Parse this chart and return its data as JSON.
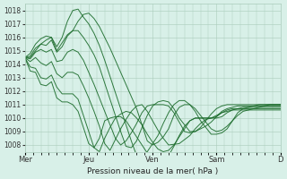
{
  "background_color": "#d8f0e8",
  "grid_color": "#aaccbb",
  "line_color": "#1a6b2a",
  "xlabel": "Pression niveau de la mer( hPa )",
  "ylim": [
    1007.5,
    1018.5
  ],
  "yticks": [
    1008,
    1009,
    1010,
    1011,
    1012,
    1013,
    1014,
    1015,
    1016,
    1017,
    1018
  ],
  "xtick_labels": [
    "Mer",
    "Jeu",
    "Ven",
    "Sam",
    "D"
  ],
  "xtick_positions": [
    0,
    48,
    96,
    144,
    192
  ],
  "xlim": [
    0,
    192
  ],
  "series": [
    {
      "x": [
        0,
        4,
        8,
        12,
        16,
        20,
        24,
        28,
        32,
        36,
        40,
        44,
        48,
        52,
        56,
        60,
        64,
        68,
        72,
        76,
        80,
        84,
        88,
        92,
        96,
        100,
        104,
        108,
        112,
        116,
        120,
        124,
        128,
        132,
        136,
        140,
        144,
        148,
        152,
        156,
        160,
        164,
        168,
        172,
        176,
        180,
        184,
        188,
        192
      ],
      "y": [
        1014.5,
        1014.8,
        1015.5,
        1015.9,
        1016.1,
        1016.0,
        1015.0,
        1015.6,
        1016.2,
        1016.5,
        1017.2,
        1017.7,
        1017.8,
        1017.4,
        1016.8,
        1016.0,
        1015.2,
        1014.3,
        1013.4,
        1012.5,
        1011.6,
        1010.7,
        1009.5,
        1008.3,
        1008.0,
        1008.2,
        1008.6,
        1009.2,
        1010.2,
        1010.8,
        1011.0,
        1011.0,
        1010.7,
        1010.2,
        1009.7,
        1009.2,
        1009.0,
        1009.1,
        1009.4,
        1009.8,
        1010.2,
        1010.5,
        1010.6,
        1010.7,
        1010.8,
        1010.9,
        1011.0,
        1011.0,
        1011.0
      ]
    },
    {
      "x": [
        0,
        4,
        8,
        12,
        16,
        20,
        24,
        28,
        32,
        36,
        40,
        44,
        48,
        52,
        56,
        60,
        64,
        68,
        72,
        76,
        80,
        84,
        88,
        92,
        96,
        100,
        104,
        108,
        112,
        116,
        120,
        124,
        128,
        132,
        136,
        140,
        144,
        148,
        152,
        156,
        160,
        164,
        168,
        172,
        176,
        180,
        184,
        188,
        192
      ],
      "y": [
        1014.5,
        1014.5,
        1015.0,
        1015.5,
        1015.8,
        1016.0,
        1015.3,
        1016.0,
        1017.2,
        1018.0,
        1018.1,
        1017.5,
        1017.0,
        1016.3,
        1015.4,
        1014.3,
        1013.1,
        1011.9,
        1010.7,
        1009.5,
        1008.3,
        1007.2,
        1007.0,
        1007.5,
        1008.1,
        1008.7,
        1009.6,
        1010.4,
        1011.0,
        1011.3,
        1011.3,
        1011.0,
        1010.5,
        1009.8,
        1009.3,
        1008.8,
        1008.8,
        1008.9,
        1009.2,
        1009.8,
        1010.4,
        1010.7,
        1010.8,
        1010.9,
        1011.0,
        1011.0,
        1011.0,
        1011.0,
        1011.0
      ]
    },
    {
      "x": [
        0,
        4,
        8,
        12,
        16,
        20,
        24,
        28,
        32,
        36,
        40,
        44,
        48,
        52,
        56,
        60,
        64,
        68,
        72,
        76,
        80,
        84,
        88,
        92,
        96,
        100,
        104,
        108,
        112,
        116,
        120,
        124,
        128,
        132,
        136,
        140,
        144,
        148,
        152,
        156,
        160,
        164,
        168,
        172,
        176,
        180,
        184,
        188,
        192
      ],
      "y": [
        1014.5,
        1014.6,
        1015.2,
        1015.5,
        1015.4,
        1015.8,
        1014.9,
        1015.3,
        1016.1,
        1016.5,
        1016.5,
        1016.0,
        1015.4,
        1014.7,
        1013.8,
        1012.6,
        1011.4,
        1010.2,
        1009.0,
        1007.9,
        1007.8,
        1008.3,
        1009.3,
        1010.2,
        1010.9,
        1011.2,
        1011.3,
        1011.2,
        1010.7,
        1010.0,
        1009.5,
        1009.0,
        1009.0,
        1009.3,
        1009.8,
        1010.3,
        1010.7,
        1010.9,
        1011.0,
        1011.0,
        1011.0,
        1011.0,
        1011.0,
        1011.0,
        1011.0,
        1011.0,
        1011.0,
        1011.0,
        1011.0
      ]
    },
    {
      "x": [
        0,
        4,
        8,
        12,
        16,
        20,
        24,
        28,
        32,
        36,
        40,
        44,
        48,
        52,
        56,
        60,
        64,
        68,
        72,
        76,
        80,
        84,
        88,
        92,
        96,
        100,
        104,
        108,
        112,
        116,
        120,
        124,
        128,
        132,
        136,
        140,
        144,
        148,
        152,
        156,
        160,
        164,
        168,
        172,
        176,
        180,
        184,
        188,
        192
      ],
      "y": [
        1014.5,
        1014.4,
        1014.9,
        1015.1,
        1014.9,
        1015.1,
        1014.2,
        1014.3,
        1014.9,
        1015.1,
        1014.9,
        1014.3,
        1013.4,
        1012.5,
        1011.5,
        1010.5,
        1009.5,
        1008.5,
        1008.0,
        1008.3,
        1008.9,
        1009.6,
        1010.4,
        1010.9,
        1011.0,
        1011.0,
        1011.0,
        1010.9,
        1010.4,
        1009.7,
        1009.0,
        1008.9,
        1009.0,
        1009.2,
        1009.4,
        1009.7,
        1010.1,
        1010.5,
        1010.7,
        1010.8,
        1010.9,
        1010.9,
        1010.9,
        1010.9,
        1010.9,
        1010.9,
        1010.9,
        1010.9,
        1010.9
      ]
    },
    {
      "x": [
        0,
        4,
        8,
        12,
        16,
        20,
        24,
        28,
        32,
        36,
        40,
        44,
        48,
        52,
        56,
        60,
        64,
        68,
        72,
        76,
        80,
        84,
        88,
        92,
        96,
        100,
        104,
        108,
        116,
        120,
        124,
        128,
        132,
        136,
        140,
        144,
        148,
        152,
        156,
        160,
        164,
        168,
        172,
        176,
        180,
        184,
        188,
        192
      ],
      "y": [
        1014.5,
        1014.2,
        1014.5,
        1014.1,
        1013.9,
        1014.2,
        1013.3,
        1013.0,
        1013.4,
        1013.4,
        1013.2,
        1012.4,
        1011.5,
        1010.5,
        1009.4,
        1008.1,
        1007.6,
        1008.4,
        1009.2,
        1009.9,
        1010.5,
        1010.9,
        1011.0,
        1010.5,
        1009.8,
        1009.1,
        1008.5,
        1008.0,
        1008.1,
        1008.4,
        1008.7,
        1009.2,
        1009.6,
        1009.9,
        1010.0,
        1010.0,
        1010.1,
        1010.4,
        1010.6,
        1010.7,
        1010.8,
        1010.8,
        1010.8,
        1010.8,
        1010.8,
        1010.8,
        1010.8,
        1010.8
      ]
    },
    {
      "x": [
        0,
        4,
        8,
        12,
        16,
        20,
        24,
        28,
        32,
        36,
        40,
        44,
        48,
        52,
        56,
        60,
        64,
        68,
        72,
        76,
        80,
        84,
        88,
        92,
        96,
        100,
        104,
        108,
        112,
        116,
        120,
        124,
        128,
        132,
        136,
        140,
        144,
        148,
        152,
        156,
        160,
        164,
        168,
        172,
        176,
        180,
        184,
        188,
        192
      ],
      "y": [
        1014.5,
        1013.8,
        1013.7,
        1013.0,
        1012.9,
        1013.2,
        1012.3,
        1011.8,
        1011.8,
        1011.8,
        1011.4,
        1010.2,
        1009.0,
        1007.8,
        1007.5,
        1008.5,
        1009.3,
        1010.0,
        1010.3,
        1010.5,
        1010.4,
        1010.0,
        1009.5,
        1008.8,
        1008.2,
        1007.7,
        1007.5,
        1007.6,
        1008.0,
        1008.6,
        1009.2,
        1009.8,
        1010.0,
        1010.0,
        1010.0,
        1010.0,
        1010.1,
        1010.4,
        1010.6,
        1010.7,
        1010.7,
        1010.7,
        1010.7,
        1010.7,
        1010.7,
        1010.7,
        1010.7,
        1010.7,
        1010.7
      ]
    },
    {
      "x": [
        0,
        4,
        8,
        12,
        16,
        20,
        24,
        28,
        32,
        36,
        40,
        44,
        48,
        52,
        56,
        60,
        64,
        68,
        72,
        76,
        80,
        84,
        88,
        92,
        96,
        100,
        104,
        108,
        112,
        116,
        120,
        124,
        128,
        132,
        136,
        140,
        144,
        148,
        152,
        156,
        160,
        164,
        168,
        172,
        176,
        180,
        184,
        188,
        192
      ],
      "y": [
        1014.5,
        1013.5,
        1013.4,
        1012.5,
        1012.4,
        1012.7,
        1011.5,
        1011.2,
        1011.2,
        1011.0,
        1010.5,
        1009.3,
        1008.1,
        1007.8,
        1008.5,
        1009.8,
        1010.0,
        1010.1,
        1010.1,
        1009.8,
        1009.2,
        1008.6,
        1008.0,
        1007.4,
        1006.9,
        1006.6,
        1006.7,
        1007.2,
        1007.9,
        1008.7,
        1009.4,
        1009.8,
        1010.0,
        1010.0,
        1010.0,
        1010.0,
        1010.2,
        1010.4,
        1010.5,
        1010.6,
        1010.6,
        1010.6,
        1010.6,
        1010.6,
        1010.6,
        1010.6,
        1010.6,
        1010.6,
        1010.6
      ]
    }
  ]
}
